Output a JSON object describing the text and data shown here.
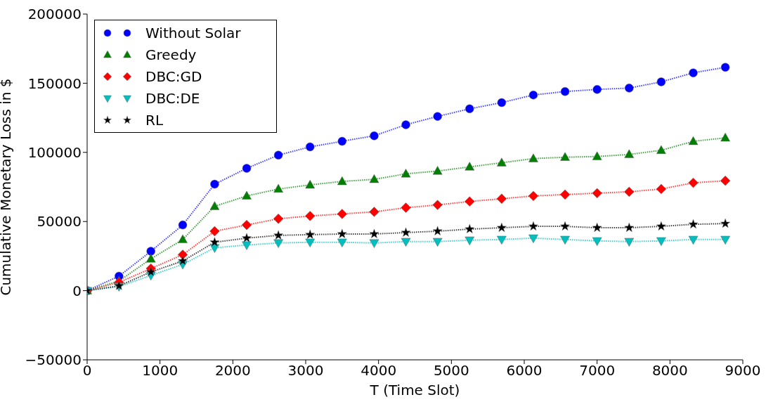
{
  "chart_data": {
    "type": "line",
    "xlabel": "T (Time Slot)",
    "ylabel": "Cumulative Monetary Loss in $",
    "xlim": [
      0,
      9000
    ],
    "xticks": [
      0,
      1000,
      2000,
      3000,
      4000,
      5000,
      6000,
      7000,
      8000,
      9000
    ],
    "ylim": [
      -50000,
      200000
    ],
    "yticks": [
      {
        "value": -50000,
        "label": "−50000"
      },
      0,
      50000,
      100000,
      150000,
      200000
    ],
    "grid": false,
    "legend": "top left",
    "line_style": "dotted",
    "x": [
      0,
      437,
      875,
      1312,
      1750,
      2190,
      2625,
      3060,
      3500,
      3940,
      4375,
      4810,
      5250,
      5690,
      6125,
      6560,
      7000,
      7440,
      7880,
      8320,
      8760
    ],
    "series": [
      {
        "name": "Without Solar",
        "color": "#0000ff",
        "marker": "circle",
        "values": [
          0,
          10500,
          28500,
          47500,
          77000,
          88500,
          98000,
          104000,
          108000,
          112000,
          120000,
          126000,
          131500,
          136000,
          141500,
          144000,
          145500,
          146500,
          151000,
          157500,
          161500
        ]
      },
      {
        "name": "Greedy",
        "color": "#008000",
        "marker": "triangle",
        "values": [
          0,
          7000,
          23000,
          37000,
          61000,
          68500,
          73500,
          76500,
          79000,
          80500,
          84500,
          86500,
          89500,
          92500,
          95500,
          96500,
          97000,
          98500,
          101500,
          108000,
          110500
        ]
      },
      {
        "name": "DBC:GD",
        "color": "#ff0000",
        "marker": "diamond",
        "values": [
          0,
          6000,
          16000,
          26000,
          43000,
          47500,
          52000,
          54000,
          55500,
          57000,
          60000,
          62000,
          64500,
          66500,
          68500,
          69500,
          70500,
          71500,
          73500,
          78000,
          79500
        ]
      },
      {
        "name": "DBC:DE",
        "color": "#00bfbf",
        "marker": "triangle-down",
        "values": [
          0,
          3000,
          11000,
          19000,
          31000,
          33000,
          34500,
          35000,
          35000,
          34500,
          35500,
          35500,
          36500,
          37000,
          38000,
          37000,
          36000,
          35500,
          36000,
          37000,
          37000
        ]
      },
      {
        "name": "RL",
        "color": "#000000",
        "marker": "star",
        "values": [
          0,
          3500,
          13500,
          21500,
          35000,
          38000,
          40000,
          40500,
          41000,
          41000,
          42000,
          43000,
          44500,
          45500,
          46500,
          46500,
          45500,
          45500,
          46500,
          48000,
          48500
        ]
      }
    ]
  }
}
